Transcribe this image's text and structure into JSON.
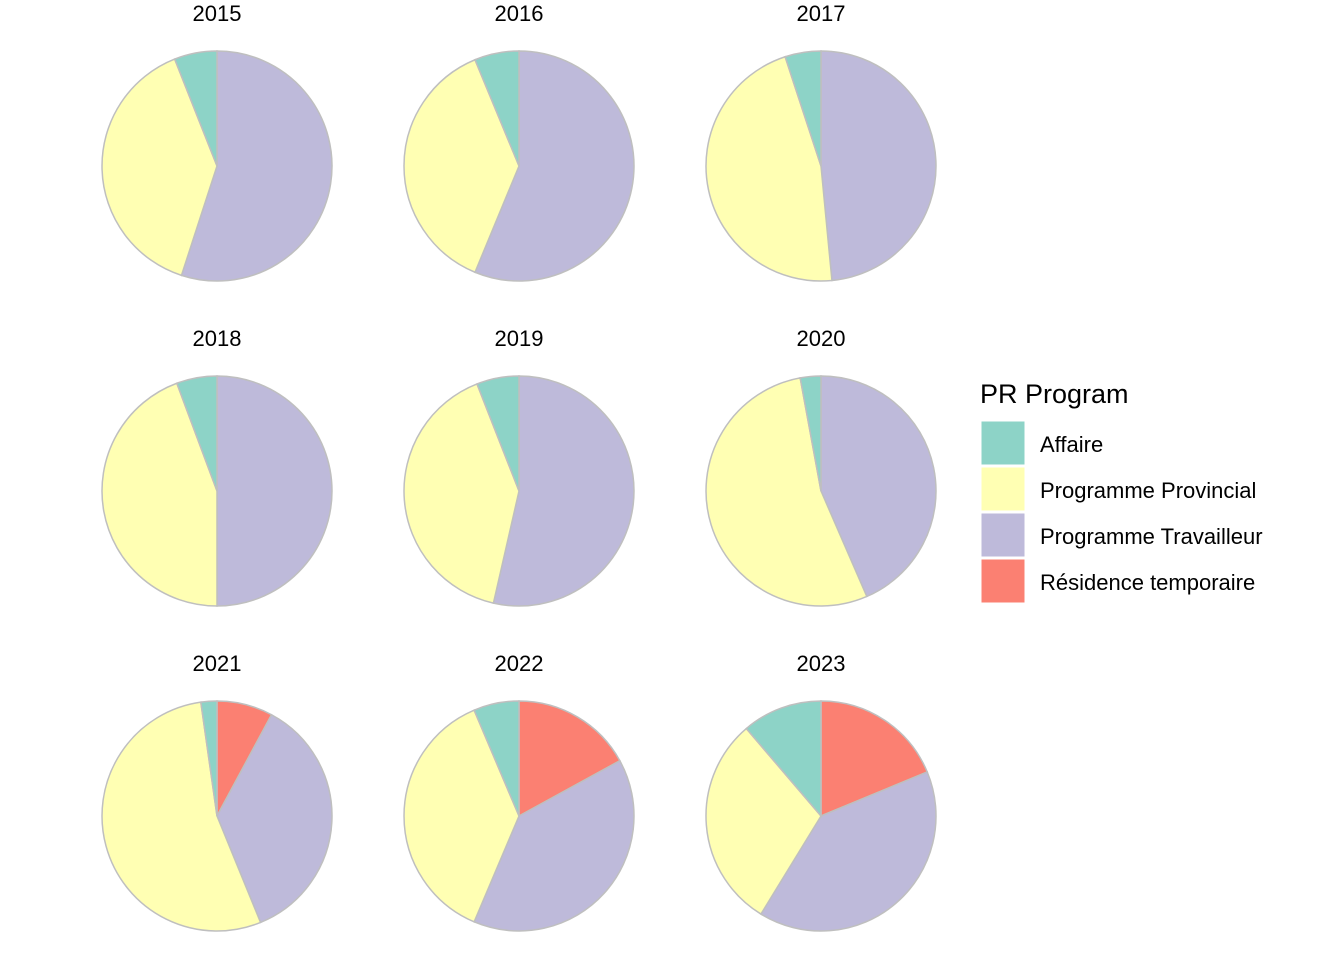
{
  "chart_data": {
    "type": "pie",
    "legend": {
      "title": "PR Program",
      "placement": "right",
      "entries": [
        {
          "label": "Affaire",
          "color": "#8DD3C7"
        },
        {
          "label": "Programme Provincial",
          "color": "#FFFFB3"
        },
        {
          "label": "Programme Travailleur",
          "color": "#BEBADA"
        },
        {
          "label": "Résidence temporaire",
          "color": "#FB8072"
        }
      ]
    },
    "categories": [
      "Affaire",
      "Programme Provincial",
      "Programme Travailleur",
      "Résidence temporaire"
    ],
    "slice_border_color": "#BFBFBF",
    "facets": [
      {
        "title": "2015",
        "values": [
          6,
          39,
          55,
          0
        ]
      },
      {
        "title": "2016",
        "values": [
          6,
          36,
          54,
          0
        ]
      },
      {
        "title": "2017",
        "values": [
          5,
          46,
          48,
          0
        ]
      },
      {
        "title": "2018",
        "values": [
          5,
          39,
          44,
          0
        ]
      },
      {
        "title": "2019",
        "values": [
          5,
          34,
          45,
          0
        ]
      },
      {
        "title": "2020",
        "values": [
          2,
          37,
          30,
          0
        ]
      },
      {
        "title": "2021",
        "values": [
          2,
          48,
          32,
          7
        ]
      },
      {
        "title": "2022",
        "values": [
          6,
          35,
          37,
          16
        ]
      },
      {
        "title": "2023",
        "values": [
          9,
          24,
          32,
          15
        ]
      }
    ]
  }
}
